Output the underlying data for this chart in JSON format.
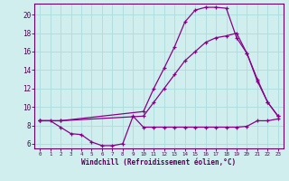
{
  "xlabel": "Windchill (Refroidissement éolien,°C)",
  "bg_color": "#d0eeee",
  "grid_color": "#aadddd",
  "line_color": "#880088",
  "xlim": [
    -0.5,
    23.5
  ],
  "ylim": [
    5.5,
    21.2
  ],
  "yticks": [
    6,
    8,
    10,
    12,
    14,
    16,
    18,
    20
  ],
  "xticks": [
    0,
    1,
    2,
    3,
    4,
    5,
    6,
    7,
    8,
    9,
    10,
    11,
    12,
    13,
    14,
    15,
    16,
    17,
    18,
    19,
    20,
    21,
    22,
    23
  ],
  "line1_x": [
    0,
    1,
    2,
    3,
    4,
    5,
    6,
    7,
    8,
    9,
    10,
    11,
    12,
    13,
    14,
    15,
    16,
    17,
    18,
    19,
    20,
    21,
    22,
    23
  ],
  "line1_y": [
    8.5,
    8.5,
    7.8,
    7.1,
    7.0,
    6.2,
    5.8,
    5.8,
    6.0,
    9.0,
    7.8,
    7.8,
    7.8,
    7.8,
    7.8,
    7.8,
    7.8,
    7.8,
    7.8,
    7.8,
    7.9,
    8.5,
    8.5,
    8.7
  ],
  "line2_x": [
    0,
    2,
    10,
    11,
    12,
    13,
    14,
    15,
    16,
    17,
    18,
    19,
    20,
    21,
    22,
    23
  ],
  "line2_y": [
    8.5,
    8.5,
    9.5,
    12.0,
    14.2,
    16.5,
    19.2,
    20.5,
    20.8,
    20.8,
    20.7,
    17.5,
    15.8,
    12.8,
    10.5,
    9.0
  ],
  "line3_x": [
    0,
    2,
    10,
    11,
    12,
    13,
    14,
    15,
    16,
    17,
    18,
    19,
    20,
    21,
    22,
    23
  ],
  "line3_y": [
    8.5,
    8.5,
    9.0,
    10.5,
    12.0,
    13.5,
    15.0,
    16.0,
    17.0,
    17.5,
    17.7,
    18.0,
    15.8,
    13.0,
    10.5,
    9.0
  ]
}
